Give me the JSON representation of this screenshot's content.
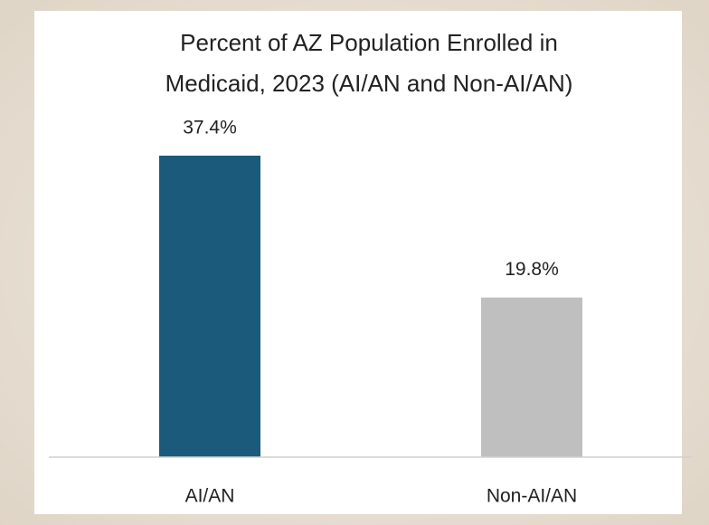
{
  "chart_data": {
    "type": "bar",
    "title": [
      "Percent of AZ Population Enrolled in",
      "Medicaid, 2023 (AI/AN and Non-AI/AN)"
    ],
    "categories": [
      "AI/AN",
      "Non-AI/AN"
    ],
    "values": [
      37.4,
      19.8
    ],
    "value_labels": [
      "37.4%",
      "19.8%"
    ],
    "colors": [
      "#1b5a7a",
      "#bfbfbf"
    ],
    "ylim": [
      0,
      42
    ]
  }
}
